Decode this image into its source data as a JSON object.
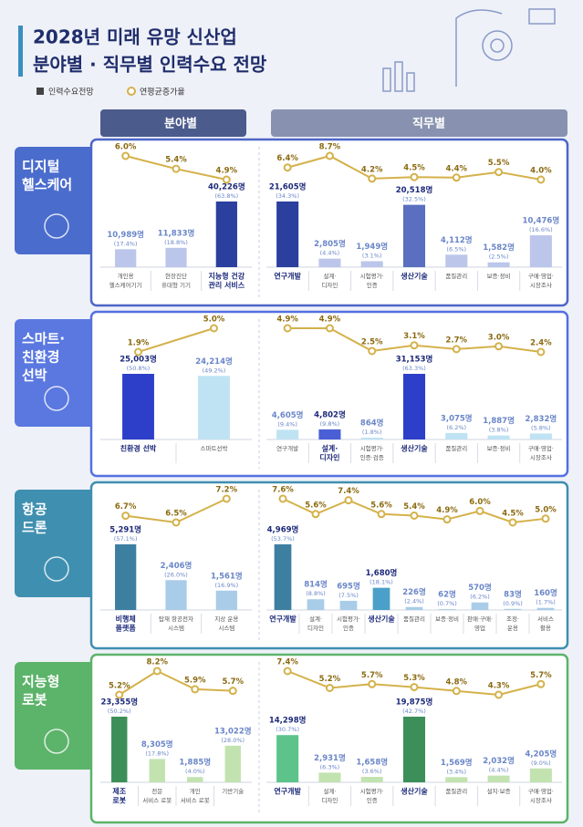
{
  "header": {
    "title": [
      "2028년 미래 유망 신산업",
      "분야별 · 직무별 인력수요 전망"
    ],
    "legend": [
      {
        "name": "인력수요전망",
        "color": "#444444"
      },
      {
        "name": "연평균증가율",
        "color": "#d4b14a"
      }
    ],
    "columns": [
      "분야별",
      "직무별"
    ]
  },
  "sections": [
    {
      "name": [
        "디지털",
        "헬스케어"
      ],
      "tab_color": "#4a6ccd",
      "border": "#4e66c8",
      "field": {
        "type": "bar_line",
        "categories": [
          [
            "개인용",
            "헬스케어기기"
          ],
          [
            "현장진단",
            "휴대형 기기"
          ],
          [
            "지능형 건강",
            "관리 서비스"
          ]
        ],
        "values": [
          10989,
          11833,
          40226
        ],
        "value_labels": [
          "10,989명",
          "11,833명",
          "40,226명"
        ],
        "shares": [
          17.4,
          18.8,
          63.8
        ],
        "share_labels": [
          "(17.4%)",
          "(18.8%)",
          "(63.8%)"
        ],
        "growth": [
          6.0,
          5.4,
          4.9
        ],
        "growth_labels": [
          "6.0%",
          "5.4%",
          "4.9%"
        ],
        "colors": [
          "#bcc6ea",
          "#bcc6ea",
          "#2a3f9e"
        ],
        "bold": [
          false,
          false,
          true
        ]
      },
      "jobs": {
        "type": "bar_line",
        "categories": [
          [
            "연구개발"
          ],
          [
            "설계·",
            "디자인"
          ],
          [
            "시험평가·",
            "인증"
          ],
          [
            "생산기술"
          ],
          [
            "품질관리"
          ],
          [
            "보증·정비"
          ],
          [
            "구매·영업·",
            "시장조사"
          ]
        ],
        "values": [
          21605,
          2805,
          1949,
          20518,
          4112,
          1582,
          10476
        ],
        "value_labels": [
          "21,605명",
          "2,805명",
          "1,949명",
          "20,518명",
          "4,112명",
          "1,582명",
          "10,476명"
        ],
        "shares": [
          34.3,
          4.4,
          3.1,
          32.5,
          6.5,
          2.5,
          16.6
        ],
        "share_labels": [
          "(34.3%)",
          "(4.4%)",
          "(3.1%)",
          "(32.5%)",
          "(6.5%)",
          "(2.5%)",
          "(16.6%)"
        ],
        "growth": [
          6.4,
          8.7,
          4.2,
          4.5,
          4.4,
          5.5,
          4.0
        ],
        "growth_labels": [
          "6.4%",
          "8.7%",
          "4.2%",
          "4.5%",
          "4.4%",
          "5.5%",
          "4.0%"
        ],
        "colors": [
          "#2a3f9e",
          "#bcc6ea",
          "#bcc6ea",
          "#5a6fbf",
          "#bcc6ea",
          "#bcc6ea",
          "#bcc6ea"
        ],
        "bold": [
          true,
          false,
          false,
          true,
          false,
          false,
          false
        ]
      }
    },
    {
      "name": [
        "스마트·",
        "친환경",
        "선박"
      ],
      "tab_color": "#5a78e0",
      "border": "#5570e0",
      "field": {
        "type": "bar_line",
        "categories": [
          [
            "친환경 선박"
          ],
          [
            "스마트선박"
          ]
        ],
        "values": [
          25003,
          24214
        ],
        "value_labels": [
          "25,003명",
          "24,214명"
        ],
        "shares": [
          50.8,
          49.2
        ],
        "share_labels": [
          "(50.8%)",
          "(49.2%)"
        ],
        "growth": [
          1.9,
          5.0
        ],
        "growth_labels": [
          "1.9%",
          "5.0%"
        ],
        "colors": [
          "#2d3fc9",
          "#bfe3f3"
        ],
        "bold": [
          true,
          false
        ]
      },
      "jobs": {
        "type": "bar_line",
        "categories": [
          [
            "연구개발"
          ],
          [
            "설계·",
            "디자인"
          ],
          [
            "시험평가·",
            "인증·검증"
          ],
          [
            "생산기술"
          ],
          [
            "품질관리"
          ],
          [
            "보증·정비"
          ],
          [
            "구매·영업·",
            "시장조사"
          ]
        ],
        "values": [
          4605,
          4802,
          864,
          31153,
          3075,
          1887,
          2832
        ],
        "value_labels": [
          "4,605명",
          "4,802명",
          "864명",
          "31,153명",
          "3,075명",
          "1,887명",
          "2,832명"
        ],
        "shares": [
          9.4,
          9.8,
          1.8,
          63.3,
          6.2,
          3.8,
          5.8
        ],
        "share_labels": [
          "(9.4%)",
          "(9.8%)",
          "(1.8%)",
          "(63.3%)",
          "(6.2%)",
          "(3.8%)",
          "(5.8%)"
        ],
        "growth": [
          4.9,
          4.9,
          2.5,
          3.1,
          2.7,
          3.0,
          2.4
        ],
        "growth_labels": [
          "4.9%",
          "4.9%",
          "2.5%",
          "3.1%",
          "2.7%",
          "3.0%",
          "2.4%"
        ],
        "colors": [
          "#bfe3f3",
          "#4a5fd6",
          "#bfe3f3",
          "#2d3fc9",
          "#bfe3f3",
          "#bfe3f3",
          "#bfe3f3"
        ],
        "bold": [
          false,
          true,
          false,
          true,
          false,
          false,
          false
        ]
      }
    },
    {
      "name": [
        "항공",
        "드론"
      ],
      "tab_color": "#3f8fb0",
      "border": "#3f8fb0",
      "field": {
        "type": "bar_line",
        "categories": [
          [
            "비행체",
            "플랫폼"
          ],
          [
            "탑재 항공전자",
            "시스템"
          ],
          [
            "지상 운용",
            "시스템"
          ]
        ],
        "values": [
          5291,
          2406,
          1561
        ],
        "value_labels": [
          "5,291명",
          "2,406명",
          "1,561명"
        ],
        "shares": [
          57.1,
          26.0,
          16.9
        ],
        "share_labels": [
          "(57.1%)",
          "(26.0%)",
          "(16.9%)"
        ],
        "growth": [
          6.7,
          6.5,
          7.2
        ],
        "growth_labels": [
          "6.7%",
          "6.5%",
          "7.2%"
        ],
        "colors": [
          "#3d7fa0",
          "#a9cde8",
          "#a9cde8"
        ],
        "bold": [
          true,
          false,
          false
        ]
      },
      "jobs": {
        "type": "bar_line",
        "categories": [
          [
            "연구개발"
          ],
          [
            "설계·",
            "디자인"
          ],
          [
            "시험평가·",
            "인증"
          ],
          [
            "생산기술"
          ],
          [
            "품질관리"
          ],
          [
            "보증·정비"
          ],
          [
            "판매·구매·",
            "영업"
          ],
          [
            "조정·",
            "운용"
          ],
          [
            "서비스",
            "활용"
          ]
        ],
        "values": [
          4969,
          814,
          695,
          1680,
          226,
          62,
          570,
          83,
          160
        ],
        "value_labels": [
          "4,969명",
          "814명",
          "695명",
          "1,680명",
          "226명",
          "62명",
          "570명",
          "83명",
          "160명"
        ],
        "shares": [
          53.7,
          8.8,
          7.5,
          18.1,
          2.4,
          0.7,
          6.2,
          0.9,
          1.7
        ],
        "share_labels": [
          "(53.7%)",
          "(8.8%)",
          "(7.5%)",
          "(18.1%)",
          "(2.4%)",
          "(0.7%)",
          "(6.2%)",
          "(0.9%)",
          "(1.7%)"
        ],
        "growth": [
          7.6,
          5.6,
          7.4,
          5.6,
          5.4,
          4.9,
          6.0,
          4.5,
          5.0
        ],
        "growth_labels": [
          "7.6%",
          "5.6%",
          "7.4%",
          "5.6%",
          "5.4%",
          "4.9%",
          "6.0%",
          "4.5%",
          "5.0%"
        ],
        "colors": [
          "#3d7fa0",
          "#a9cde8",
          "#a9cde8",
          "#4aa0c8",
          "#a9cde8",
          "#a9cde8",
          "#a9cde8",
          "#a9cde8",
          "#a9cde8"
        ],
        "bold": [
          true,
          false,
          false,
          true,
          false,
          false,
          false,
          false,
          false
        ]
      }
    },
    {
      "name": [
        "지능형",
        "로봇"
      ],
      "tab_color": "#5cb36a",
      "border": "#5cb36a",
      "field": {
        "type": "bar_line",
        "categories": [
          [
            "제조",
            "로봇"
          ],
          [
            "전문",
            "서비스 로봇"
          ],
          [
            "개인",
            "서비스 로봇"
          ],
          [
            "기반기술"
          ]
        ],
        "values": [
          23355,
          8305,
          1885,
          13022
        ],
        "value_labels": [
          "23,355명",
          "8,305명",
          "1,885명",
          "13,022명"
        ],
        "shares": [
          50.2,
          17.8,
          4.0,
          28.0
        ],
        "share_labels": [
          "(50.2%)",
          "(17.8%)",
          "(4.0%)",
          "(28.0%)"
        ],
        "growth": [
          5.2,
          8.2,
          5.9,
          5.7
        ],
        "growth_labels": [
          "5.2%",
          "8.2%",
          "5.9%",
          "5.7%"
        ],
        "colors": [
          "#3d8f5a",
          "#c2e3b0",
          "#c2e3b0",
          "#c2e3b0"
        ],
        "bold": [
          true,
          false,
          false,
          false
        ]
      },
      "jobs": {
        "type": "bar_line",
        "categories": [
          [
            "연구개발"
          ],
          [
            "설계·",
            "디자인"
          ],
          [
            "시험평가·",
            "인증"
          ],
          [
            "생산기술"
          ],
          [
            "품질관리"
          ],
          [
            "설치·보증"
          ],
          [
            "구매·영업·",
            "시장조사"
          ]
        ],
        "values": [
          14298,
          2931,
          1658,
          19875,
          1569,
          2032,
          4205
        ],
        "value_labels": [
          "14,298명",
          "2,931명",
          "1,658명",
          "19,875명",
          "1,569명",
          "2,032명",
          "4,205명"
        ],
        "shares": [
          30.7,
          6.3,
          3.6,
          42.7,
          3.4,
          4.4,
          9.0
        ],
        "share_labels": [
          "(30.7%)",
          "(6.3%)",
          "(3.6%)",
          "(42.7%)",
          "(3.4%)",
          "(4.4%)",
          "(9.0%)"
        ],
        "growth": [
          7.4,
          5.2,
          5.7,
          5.3,
          4.8,
          4.3,
          5.7
        ],
        "growth_labels": [
          "7.4%",
          "5.2%",
          "5.7%",
          "5.3%",
          "4.8%",
          "4.3%",
          "5.7%"
        ],
        "colors": [
          "#5cc48a",
          "#c2e3b0",
          "#c2e3b0",
          "#3d8f5a",
          "#c2e3b0",
          "#c2e3b0",
          "#c2e3b0"
        ],
        "bold": [
          true,
          false,
          false,
          true,
          false,
          false,
          false
        ]
      }
    }
  ]
}
